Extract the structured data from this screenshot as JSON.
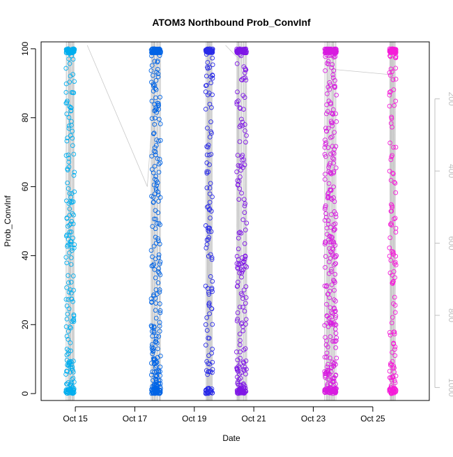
{
  "chart_data": {
    "type": "scatter",
    "title": "ATOM3 Northbound Prob_ConvInf",
    "xlabel": "Date",
    "ylabel": "Prob_ConvInf",
    "x_ticks": [
      "Oct 15",
      "Oct 17",
      "Oct 19",
      "Oct 21",
      "Oct 23",
      "Oct 25"
    ],
    "x_tick_days": [
      15,
      17,
      19,
      21,
      23,
      25
    ],
    "xlim": [
      13.85,
      26.9
    ],
    "ylim": [
      -2,
      102
    ],
    "y_ticks": [
      0,
      20,
      40,
      60,
      80,
      100
    ],
    "y2_ticks": [
      200,
      400,
      600,
      800,
      1000
    ],
    "y2lim": [
      1036,
      42
    ],
    "grid": false,
    "legend": "none",
    "series": [
      {
        "day_start": 14.68,
        "day_end": 14.97,
        "color": "#00AEEF",
        "count": 260
      },
      {
        "day_start": 17.55,
        "day_end": 17.87,
        "color": "#0064E6",
        "count": 330
      },
      {
        "day_start": 19.38,
        "day_end": 19.62,
        "color": "#2A2BE8",
        "count": 180
      },
      {
        "day_start": 20.42,
        "day_end": 20.76,
        "color": "#7F17E6",
        "count": 260
      },
      {
        "day_start": 23.38,
        "day_end": 23.78,
        "color": "#D81CE0",
        "count": 380
      },
      {
        "day_start": 25.56,
        "day_end": 25.78,
        "color": "#F51CD8",
        "count": 200
      }
    ],
    "path_color": "#c8c8c8",
    "tick_color": "#c0c0c0"
  }
}
